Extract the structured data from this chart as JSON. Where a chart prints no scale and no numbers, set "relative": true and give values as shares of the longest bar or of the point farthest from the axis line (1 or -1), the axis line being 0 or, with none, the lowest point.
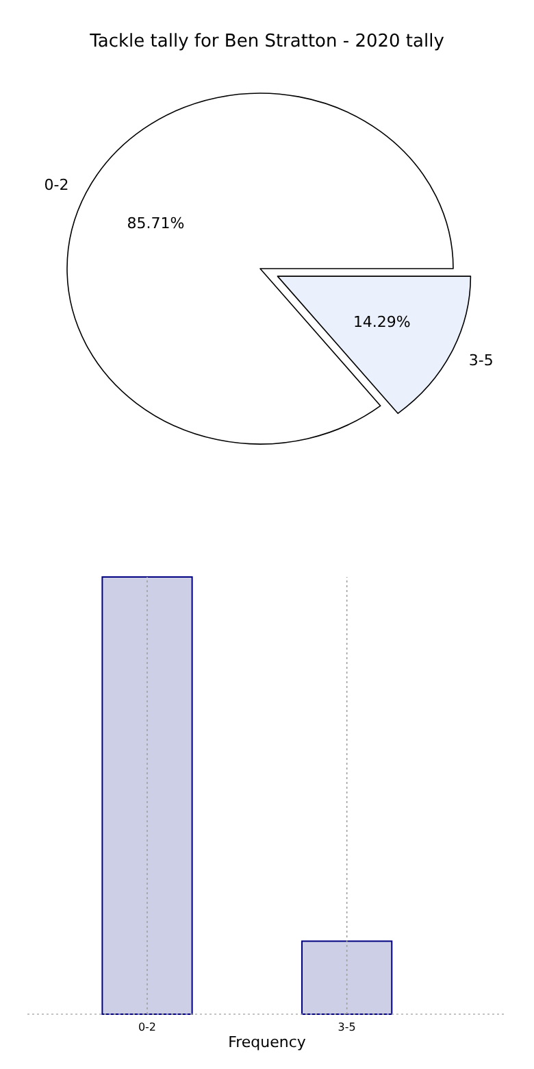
{
  "chart_data": [
    {
      "type": "pie",
      "title": "Tackle tally for Ben Stratton - 2020 tally",
      "categories": [
        "0-2",
        "3-5"
      ],
      "values": [
        85.71,
        14.29
      ],
      "colors": [
        "#ffffff",
        "#eaf0fc"
      ],
      "value_labels": [
        "85.71%",
        "14.29%"
      ]
    },
    {
      "type": "bar",
      "categories": [
        "0-2",
        "3-5"
      ],
      "values": [
        1,
        0.167
      ],
      "relative": true,
      "color": "#cccfe6",
      "xlabel": "Frequency",
      "grid": "x"
    }
  ]
}
